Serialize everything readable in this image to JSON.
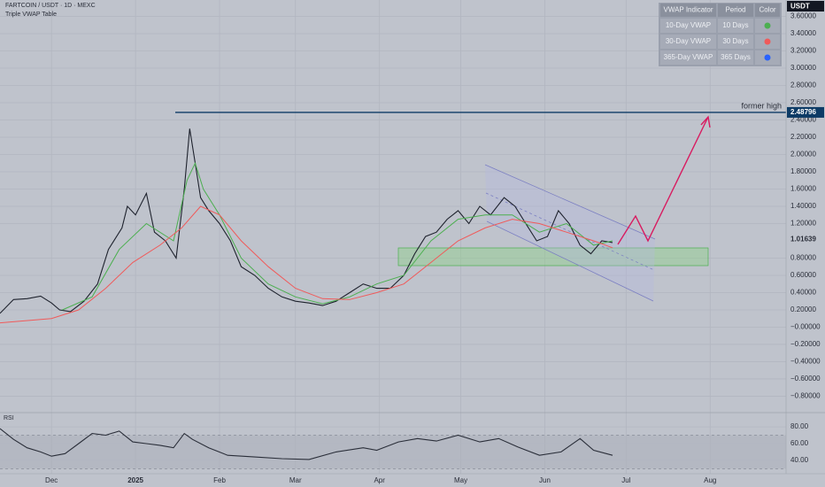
{
  "header": {
    "symbol": "FARTCOIN / USDT · 1D · MEXC",
    "indicator": "Triple VWAP Table",
    "currency": "USDT"
  },
  "table": {
    "columns": [
      "VWAP Indicator",
      "Period",
      "Color"
    ],
    "rows": [
      {
        "name": "10-Day VWAP",
        "period": "10 Days",
        "color": "#4caf50"
      },
      {
        "name": "30-Day VWAP",
        "period": "30 Days",
        "color": "#f05a5a"
      },
      {
        "name": "365-Day VWAP",
        "period": "365 Days",
        "color": "#2962ff"
      }
    ]
  },
  "chart_data": [
    {
      "type": "line",
      "xlim": [
        -19,
        271
      ],
      "ylim": [
        -0.98,
        3.79
      ],
      "xticks": [
        {
          "value": 0,
          "label": "Dec"
        },
        {
          "value": 31,
          "label": "2025"
        },
        {
          "value": 62,
          "label": "Feb"
        },
        {
          "value": 90,
          "label": "Mar"
        },
        {
          "value": 121,
          "label": "Apr"
        },
        {
          "value": 151,
          "label": "May"
        },
        {
          "value": 182,
          "label": "Jun"
        },
        {
          "value": 212,
          "label": "Jul"
        },
        {
          "value": 243,
          "label": "Aug"
        }
      ],
      "yticks": [
        {
          "value": 3.6,
          "label": "3.60000"
        },
        {
          "value": 3.4,
          "label": "3.40000"
        },
        {
          "value": 3.2,
          "label": "3.20000"
        },
        {
          "value": 3.0,
          "label": "3.00000"
        },
        {
          "value": 2.8,
          "label": "2.80000"
        },
        {
          "value": 2.6,
          "label": "2.60000"
        },
        {
          "value": 2.4,
          "label": "2.40000"
        },
        {
          "value": 2.2,
          "label": "2.20000"
        },
        {
          "value": 2.0,
          "label": "2.00000"
        },
        {
          "value": 1.8,
          "label": "1.80000"
        },
        {
          "value": 1.6,
          "label": "1.60000"
        },
        {
          "value": 1.4,
          "label": "1.40000"
        },
        {
          "value": 1.2,
          "label": "1.20000"
        },
        {
          "value": 0.8,
          "label": "0.80000"
        },
        {
          "value": 0.6,
          "label": "0.60000"
        },
        {
          "value": 0.4,
          "label": "0.40000"
        },
        {
          "value": 0.2,
          "label": "0.20000"
        },
        {
          "value": 0,
          "label": "−0.00000"
        },
        {
          "value": -0.2,
          "label": "−0.20000"
        },
        {
          "value": -0.4,
          "label": "−0.40000"
        },
        {
          "value": -0.6,
          "label": "−0.60000"
        },
        {
          "value": -0.8,
          "label": "−0.80000"
        }
      ],
      "grid": true,
      "last_price": 1.01639,
      "former_high": 2.48796,
      "former_high_label": "former high",
      "series": [
        {
          "color": "#1e222d",
          "x": [
            -19,
            -14,
            -9,
            -4,
            0,
            3,
            7,
            12,
            17,
            21,
            26,
            28,
            31,
            35,
            38,
            42,
            46,
            49,
            51,
            53,
            55,
            58,
            62,
            66,
            70,
            75,
            80,
            85,
            90,
            95,
            100,
            105,
            110,
            115,
            120,
            125,
            130,
            134,
            138,
            142,
            146,
            150,
            154,
            158,
            162,
            167,
            171,
            175,
            179,
            183,
            187,
            191,
            195,
            199,
            203,
            207
          ],
          "values": [
            0.16,
            0.32,
            0.33,
            0.36,
            0.28,
            0.2,
            0.18,
            0.3,
            0.5,
            0.9,
            1.15,
            1.4,
            1.3,
            1.55,
            1.1,
            1.0,
            0.8,
            1.6,
            2.3,
            1.9,
            1.5,
            1.35,
            1.2,
            1.0,
            0.7,
            0.6,
            0.45,
            0.35,
            0.3,
            0.28,
            0.25,
            0.3,
            0.4,
            0.5,
            0.45,
            0.45,
            0.6,
            0.85,
            1.05,
            1.1,
            1.25,
            1.35,
            1.2,
            1.4,
            1.3,
            1.5,
            1.4,
            1.2,
            1.0,
            1.05,
            1.35,
            1.2,
            0.95,
            0.85,
            1.0,
            0.98
          ]
        },
        {
          "color": "#4caf50",
          "x": [
            4,
            15,
            25,
            35,
            45,
            50,
            53,
            56,
            62,
            70,
            80,
            90,
            100,
            110,
            120,
            130,
            140,
            150,
            160,
            170,
            180,
            190,
            200,
            207
          ],
          "values": [
            0.2,
            0.35,
            0.9,
            1.2,
            1.0,
            1.7,
            1.9,
            1.6,
            1.3,
            0.8,
            0.5,
            0.35,
            0.27,
            0.35,
            0.5,
            0.6,
            1.0,
            1.25,
            1.3,
            1.3,
            1.1,
            1.2,
            0.95,
            1.0
          ]
        },
        {
          "color": "#f05a5a",
          "x": [
            -19,
            0,
            10,
            20,
            30,
            40,
            48,
            55,
            62,
            70,
            80,
            90,
            100,
            110,
            120,
            130,
            140,
            150,
            160,
            170,
            180,
            190,
            200,
            207
          ],
          "values": [
            0.05,
            0.1,
            0.2,
            0.45,
            0.75,
            0.95,
            1.15,
            1.4,
            1.3,
            1.0,
            0.7,
            0.45,
            0.33,
            0.32,
            0.4,
            0.5,
            0.75,
            1.0,
            1.15,
            1.25,
            1.2,
            1.1,
            1.0,
            0.92
          ]
        }
      ]
    },
    {
      "type": "line",
      "title": "RSI",
      "ylim": [
        24,
        97
      ],
      "yticks": [
        {
          "value": 80,
          "label": "80.00"
        },
        {
          "value": 60,
          "label": "60.00"
        },
        {
          "value": 40,
          "label": "40.00"
        }
      ],
      "band": [
        30,
        70
      ],
      "series": [
        {
          "color": "#2a2e39",
          "x": [
            -19,
            -14,
            -9,
            -4,
            0,
            5,
            10,
            15,
            20,
            25,
            30,
            35,
            40,
            45,
            49,
            52,
            58,
            65,
            75,
            85,
            95,
            105,
            115,
            120,
            128,
            135,
            142,
            150,
            158,
            165,
            172,
            180,
            188,
            195,
            200,
            207
          ],
          "values": [
            78,
            65,
            55,
            50,
            45,
            48,
            60,
            72,
            70,
            75,
            62,
            60,
            58,
            55,
            72,
            65,
            55,
            46,
            44,
            42,
            41,
            50,
            55,
            52,
            62,
            66,
            63,
            70,
            62,
            66,
            56,
            46,
            50,
            66,
            52,
            46
          ]
        }
      ]
    }
  ]
}
